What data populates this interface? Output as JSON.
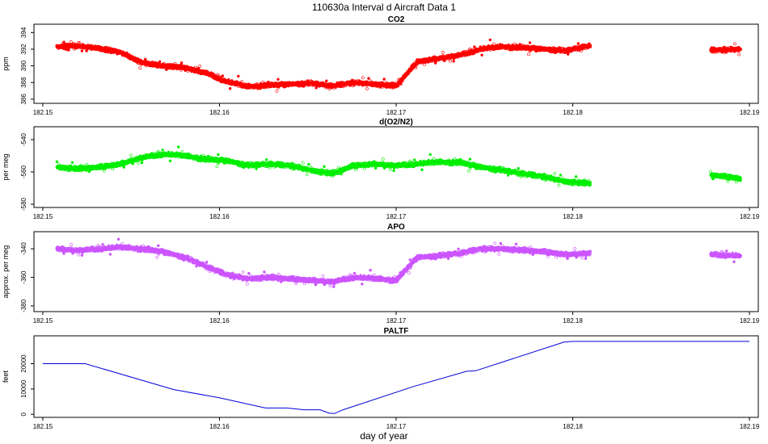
{
  "figure": {
    "title": "110630a   Interval d Aircraft Data 1",
    "xlabel": "day of year"
  },
  "chart_data": [
    {
      "type": "scatter",
      "id": "co2",
      "title": "CO2",
      "ylabel": "ppm",
      "color": "#ff0000",
      "xlim": [
        182.1495,
        182.1905
      ],
      "ylim": [
        385.5,
        395.0
      ],
      "xticks": [
        "182.15",
        "182.16",
        "182.17",
        "182.18",
        "182.19"
      ],
      "xtick_values": [
        182.15,
        182.16,
        182.17,
        182.18,
        182.19
      ],
      "yticks": [
        "386",
        "388",
        "390",
        "392",
        "394"
      ],
      "ytick_values": [
        386,
        388,
        390,
        392,
        394
      ],
      "series": [
        {
          "name": "CO2",
          "x": [
            182.1508,
            182.152,
            182.1532,
            182.1544,
            182.1556,
            182.1568,
            182.158,
            182.1592,
            182.1604,
            182.1616,
            182.1628,
            182.164,
            182.1652,
            182.1664,
            182.1676,
            182.1688,
            182.17,
            182.1712,
            182.1724,
            182.1736,
            182.1748,
            182.176,
            182.1772,
            182.1784,
            182.1796,
            182.1808,
            182.188,
            182.1895
          ],
          "y": [
            392.3,
            392.4,
            392.1,
            391.6,
            390.4,
            390.0,
            389.8,
            389.2,
            388.1,
            387.5,
            387.7,
            387.8,
            387.9,
            387.6,
            388.0,
            387.8,
            387.6,
            390.5,
            390.9,
            391.3,
            392.0,
            392.3,
            392.2,
            392.0,
            391.8,
            392.4,
            391.9,
            392.0
          ]
        }
      ]
    },
    {
      "type": "scatter",
      "id": "do2n2",
      "title": "d(O2/N2)",
      "ylabel": "per meg",
      "color": "#00ee00",
      "xlim": [
        182.1495,
        182.1905
      ],
      "ylim": [
        -582,
        -532
      ],
      "xticks": [
        "182.15",
        "182.16",
        "182.17",
        "182.18",
        "182.19"
      ],
      "xtick_values": [
        182.15,
        182.16,
        182.17,
        182.18,
        182.19
      ],
      "yticks": [
        "-580",
        "-560",
        "-540"
      ],
      "ytick_values": [
        -580,
        -560,
        -540
      ],
      "series": [
        {
          "name": "d(O2/N2)",
          "x": [
            182.1508,
            182.152,
            182.1532,
            182.1544,
            182.1556,
            182.1568,
            182.158,
            182.1592,
            182.1604,
            182.1616,
            182.1628,
            182.164,
            182.1652,
            182.1664,
            182.1676,
            182.1688,
            182.17,
            182.1712,
            182.1724,
            182.1736,
            182.1748,
            182.176,
            182.1772,
            182.1784,
            182.1796,
            182.1808,
            182.188,
            182.1895
          ],
          "y": [
            -557,
            -558,
            -557,
            -555,
            -551,
            -549,
            -550,
            -552,
            -553,
            -556,
            -555,
            -556,
            -559,
            -561,
            -556,
            -555,
            -556,
            -555,
            -554,
            -554,
            -557,
            -559,
            -561,
            -563,
            -566,
            -567,
            -562,
            -564
          ]
        }
      ]
    },
    {
      "type": "scatter",
      "id": "apo",
      "title": "APO",
      "ylabel": "approx. per meg",
      "color": "#cc55ff",
      "xlim": [
        182.1495,
        182.1905
      ],
      "ylim": [
        -384,
        -328
      ],
      "xticks": [
        "182.15",
        "182.16",
        "182.17",
        "182.18",
        "182.19"
      ],
      "xtick_values": [
        182.15,
        182.16,
        182.17,
        182.18,
        182.19
      ],
      "yticks": [
        "-380",
        "-360",
        "-340"
      ],
      "ytick_values": [
        -380,
        -360,
        -340
      ],
      "series": [
        {
          "name": "APO",
          "x": [
            182.1508,
            182.152,
            182.1532,
            182.1544,
            182.1556,
            182.1568,
            182.158,
            182.1592,
            182.1604,
            182.1616,
            182.1628,
            182.164,
            182.1652,
            182.1664,
            182.1676,
            182.1688,
            182.17,
            182.1712,
            182.1724,
            182.1736,
            182.1748,
            182.176,
            182.1772,
            182.1784,
            182.1796,
            182.1808,
            182.188,
            182.1895
          ],
          "y": [
            -340,
            -341,
            -340,
            -339,
            -340,
            -342,
            -346,
            -352,
            -358,
            -361,
            -360,
            -361,
            -362,
            -363,
            -360,
            -361,
            -362,
            -346,
            -345,
            -343,
            -340,
            -340,
            -341,
            -342,
            -344,
            -343,
            -344,
            -345
          ]
        }
      ]
    },
    {
      "type": "line",
      "id": "paltf",
      "title": "PALTF",
      "ylabel": "feet",
      "color": "#0000dd",
      "xlim": [
        182.1495,
        182.1905
      ],
      "ylim": [
        -1200,
        31000
      ],
      "xticks": [
        "182.15",
        "182.16",
        "182.17",
        "182.18",
        "182.19"
      ],
      "xtick_values": [
        182.15,
        182.16,
        182.17,
        182.18,
        182.19
      ],
      "yticks": [
        "0",
        "10000",
        "20000"
      ],
      "ytick_values": [
        0,
        10000,
        20000
      ],
      "series": [
        {
          "name": "PALTF",
          "x": [
            182.15,
            182.1524,
            182.1574,
            182.16,
            182.1626,
            182.1638,
            182.1648,
            182.1657,
            182.1662,
            182.1665,
            182.167,
            182.171,
            182.174,
            182.1745,
            182.1795,
            182.18,
            182.19
          ],
          "y": [
            20000,
            20000,
            9800,
            6500,
            2500,
            2500,
            1800,
            1800,
            500,
            300,
            1800,
            11000,
            17000,
            17200,
            28500,
            28800,
            28800
          ]
        }
      ]
    }
  ]
}
